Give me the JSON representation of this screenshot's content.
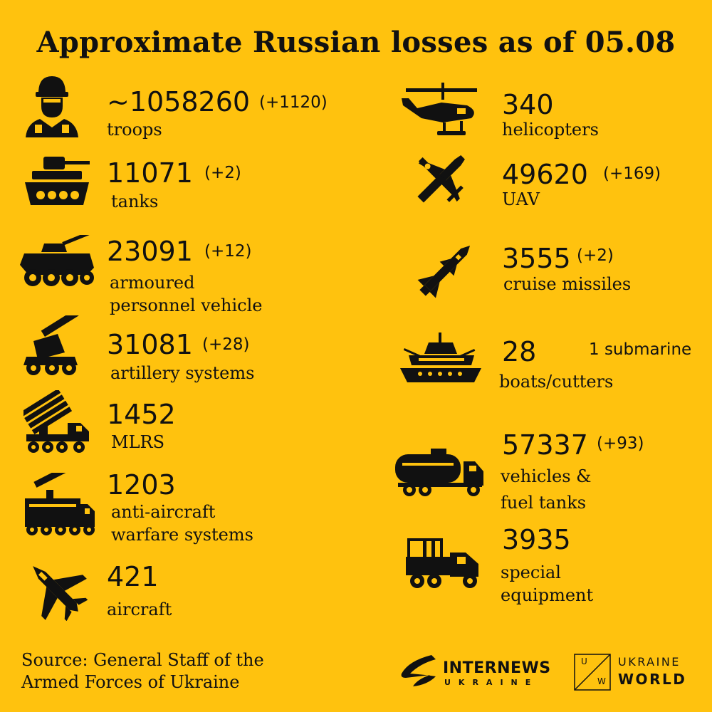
{
  "title": "Approximate Russian losses as of 05.08",
  "items": {
    "troops": {
      "value": "~1058260",
      "delta": "(+1120)",
      "label": "troops",
      "icon": "soldier-icon"
    },
    "tanks": {
      "value": "11071",
      "delta": "(+2)",
      "label": "tanks",
      "icon": "tank-icon"
    },
    "apv": {
      "value": "23091",
      "delta": "(+12)",
      "label1": "armoured",
      "label2": "personnel vehicle",
      "icon": "armoured-vehicle-icon"
    },
    "artillery": {
      "value": "31081",
      "delta": "(+28)",
      "label": "artillery systems",
      "icon": "artillery-icon"
    },
    "mlrs": {
      "value": "1452",
      "label": "MLRS",
      "icon": "mlrs-icon"
    },
    "antiair": {
      "value": "1203",
      "label1": "anti-aircraft",
      "label2": "warfare systems",
      "icon": "anti-aircraft-icon"
    },
    "aircraft": {
      "value": "421",
      "label": "aircraft",
      "icon": "aircraft-icon"
    },
    "helicopters": {
      "value": "340",
      "label": "helicopters",
      "icon": "helicopter-icon"
    },
    "uav": {
      "value": "49620",
      "delta": "(+169)",
      "label": "UAV",
      "icon": "uav-icon"
    },
    "missiles": {
      "value": "3555",
      "delta": "(+2)",
      "label": "cruise missiles",
      "icon": "missile-icon"
    },
    "boats": {
      "value": "28",
      "note": "1 submarine",
      "label": "boats/cutters",
      "icon": "ship-icon"
    },
    "vehicles": {
      "value": "57337",
      "delta": "(+93)",
      "label1": "vehicles &",
      "label2": "fuel tanks",
      "icon": "fuel-truck-icon"
    },
    "special": {
      "value": "3935",
      "label1": "special",
      "label2": "equipment",
      "icon": "special-truck-icon"
    }
  },
  "source": {
    "line1": "Source: General Staff of the",
    "line2": "Armed Forces of Ukraine"
  },
  "logos": {
    "internews": {
      "name": "INTERNEWS",
      "sub": "UKRAINE",
      "icon": "internews-logo-icon"
    },
    "ukraine_world": {
      "letters": [
        "U",
        "W"
      ],
      "line1": "UKRAINE",
      "line2": "WORLD",
      "icon": "ukraine-world-logo-icon"
    }
  }
}
